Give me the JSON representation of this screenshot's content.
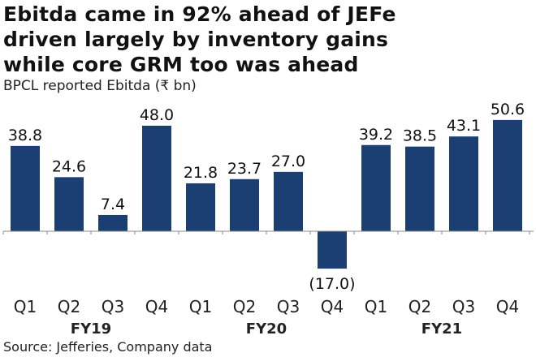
{
  "title_lines": [
    "Ebitda came in 92% ahead of JEFe",
    "driven largely by inventory gains",
    "while core GRM too was ahead"
  ],
  "subtitle": "BPCL reported Ebitda (₹ bn)",
  "source": "Source: Jefferies, Company data",
  "chart_data": {
    "type": "bar",
    "title": "BPCL reported Ebitda (₹ bn)",
    "categories": [
      "Q1",
      "Q2",
      "Q3",
      "Q4",
      "Q1",
      "Q2",
      "Q3",
      "Q4",
      "Q1",
      "Q2",
      "Q3",
      "Q4"
    ],
    "groups": [
      {
        "label": "FY19",
        "count": 4
      },
      {
        "label": "FY20",
        "count": 4
      },
      {
        "label": "FY21",
        "count": 4
      }
    ],
    "values": [
      38.8,
      24.6,
      7.4,
      48.0,
      21.8,
      23.7,
      27.0,
      -17.0,
      39.2,
      38.5,
      43.1,
      50.6
    ],
    "data_labels": [
      "38.8",
      "24.6",
      "7.4",
      "48.0",
      "21.8",
      "23.7",
      "27.0",
      "(17.0)",
      "39.2",
      "38.5",
      "43.1",
      "50.6"
    ],
    "bar_color": "#1b3f73",
    "xlabel": "",
    "ylabel": "",
    "grid": false
  }
}
